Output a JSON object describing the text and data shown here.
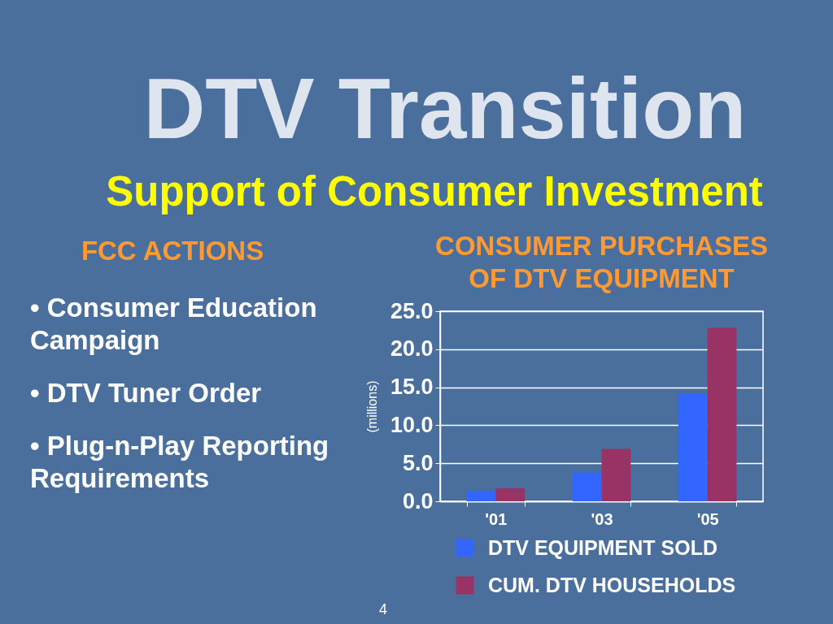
{
  "chart_data": [
    {
      "type": "other",
      "title": "DTV Transition",
      "subtitle": "Support of Consumer Investment",
      "annotations": [
        "FCC ACTIONS",
        "• Consumer Education\nCampaign",
        "• DTV Tuner Order",
        "• Plug-n-Play Reporting\nRequirements"
      ]
    },
    {
      "type": "bar",
      "title": "CONSUMER PURCHASES\nOF DTV EQUIPMENT",
      "ylabel": "(millions)",
      "categories": [
        "'01",
        "'03",
        "'05"
      ],
      "series": [
        {
          "name": "DTV EQUIPMENT SOLD",
          "color": "#3366ff",
          "values": [
            1.4,
            3.8,
            14.2
          ]
        },
        {
          "name": "CUM. DTV HOUSEHOLDS",
          "color": "#993366",
          "values": [
            1.7,
            6.9,
            22.8
          ]
        }
      ],
      "ylim": [
        0,
        25
      ],
      "yticks": [
        {
          "value": 0,
          "label": "0.0"
        },
        {
          "value": 5,
          "label": "5.0"
        },
        {
          "value": 10,
          "label": "10.0"
        },
        {
          "value": 15,
          "label": "15.0"
        },
        {
          "value": 20,
          "label": "20.0"
        },
        {
          "value": 25,
          "label": "25.0"
        }
      ],
      "grid": "y",
      "legend": "bottom",
      "annotations": [
        "4"
      ]
    }
  ]
}
